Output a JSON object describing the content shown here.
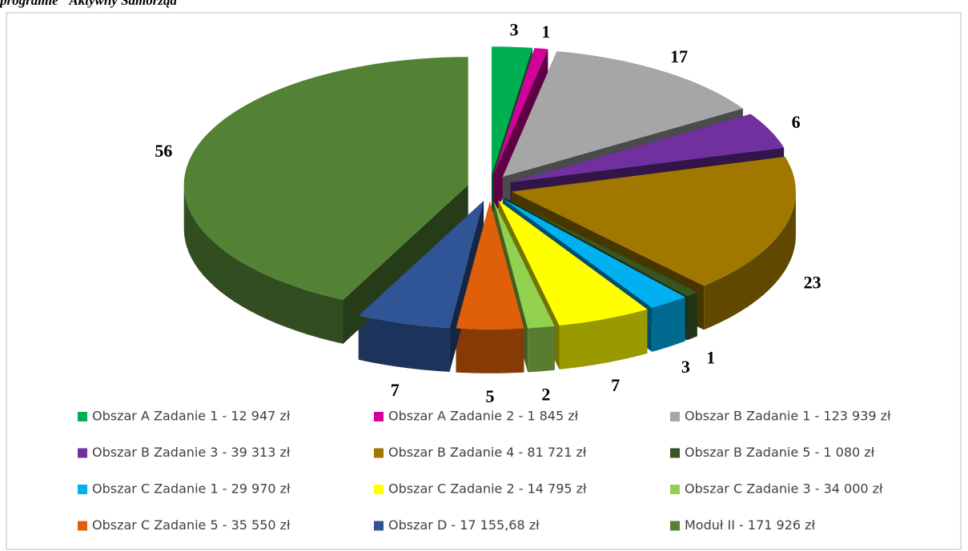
{
  "chart_data": {
    "type": "pie3d",
    "title": "programie \"Aktywny Samorząd\"",
    "categories": [
      "Obszar A Zadanie 1 - 12 947 zł",
      "Obszar A Zadanie 2 - 1 845 zł",
      "Obszar B Zadanie 1 - 123 939 zł",
      "Obszar B Zadanie 3 - 39 313 zł",
      "Obszar B Zadanie 4 - 81 721 zł",
      "Obszar B Zadanie 5 - 1 080 zł",
      "Obszar C Zadanie 1 - 29 970 zł",
      "Obszar C Zadanie 2 - 14 795 zł",
      "Obszar C Zadanie 3 - 34 000 zł",
      "Obszar C Zadanie 5 - 35 550 zł",
      "Obszar D - 17 155,68 zł",
      "Moduł II - 171 926 zł"
    ],
    "values": [
      3,
      1,
      17,
      6,
      23,
      1,
      3,
      7,
      2,
      5,
      7,
      56
    ],
    "colors": [
      "#00b050",
      "#d4009a",
      "#a6a6a6",
      "#7030a0",
      "#a07800",
      "#375623",
      "#00b0f0",
      "#ffff00",
      "#92d050",
      "#e0600a",
      "#2f5597",
      "#548235"
    ],
    "legend": "bottom"
  }
}
